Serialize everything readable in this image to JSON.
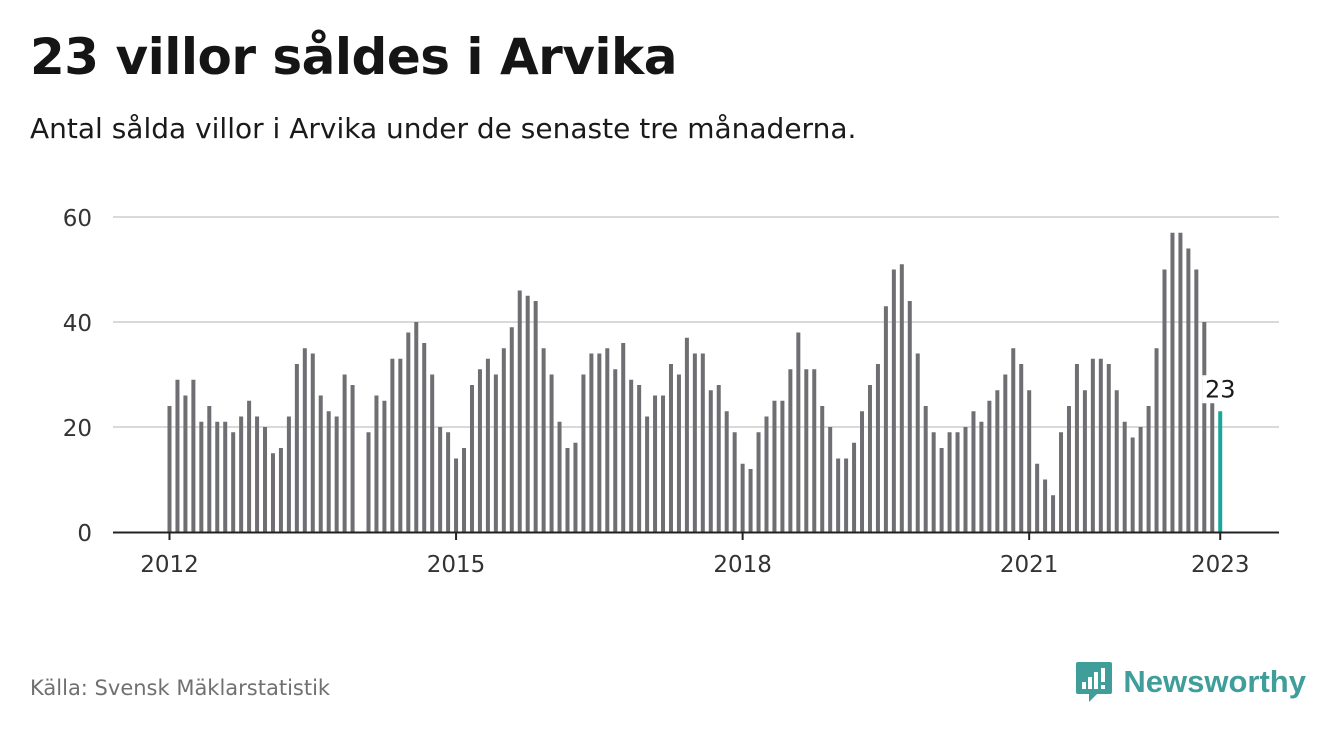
{
  "title": "23 villor såldes i Arvika",
  "subtitle": "Antal sålda villor i Arvika under de senaste tre månaderna.",
  "source": "Källa: Svensk Mäklarstatistik",
  "brand": "Newsworthy",
  "colors": {
    "bar": "#6e6e73",
    "highlight": "#19a79c",
    "grid": "#d9d9d9",
    "axis": "#222222",
    "brand": "#3f9e9a"
  },
  "chart_data": {
    "type": "bar",
    "xlabel": "",
    "ylabel": "",
    "ylim": [
      0,
      60
    ],
    "yticks": [
      0,
      20,
      40,
      60
    ],
    "grid": true,
    "x_tick_labels": [
      "2012",
      "2015",
      "2018",
      "2021",
      "2023"
    ],
    "x_start": "2012-01",
    "x_end": "2023-01",
    "categories": [
      "2012-01",
      "2012-02",
      "2012-03",
      "2012-04",
      "2012-05",
      "2012-06",
      "2012-07",
      "2012-08",
      "2012-09",
      "2012-10",
      "2012-11",
      "2012-12",
      "2013-01",
      "2013-02",
      "2013-03",
      "2013-04",
      "2013-05",
      "2013-06",
      "2013-07",
      "2013-08",
      "2013-09",
      "2013-10",
      "2013-11",
      "2013-12",
      "2014-01",
      "2014-02",
      "2014-03",
      "2014-04",
      "2014-05",
      "2014-06",
      "2014-07",
      "2014-08",
      "2014-09",
      "2014-10",
      "2014-11",
      "2014-12",
      "2015-01",
      "2015-02",
      "2015-03",
      "2015-04",
      "2015-05",
      "2015-06",
      "2015-07",
      "2015-08",
      "2015-09",
      "2015-10",
      "2015-11",
      "2015-12",
      "2016-01",
      "2016-02",
      "2016-03",
      "2016-04",
      "2016-05",
      "2016-06",
      "2016-07",
      "2016-08",
      "2016-09",
      "2016-10",
      "2016-11",
      "2016-12",
      "2017-01",
      "2017-02",
      "2017-03",
      "2017-04",
      "2017-05",
      "2017-06",
      "2017-07",
      "2017-08",
      "2017-09",
      "2017-10",
      "2017-11",
      "2017-12",
      "2018-01",
      "2018-02",
      "2018-03",
      "2018-04",
      "2018-05",
      "2018-06",
      "2018-07",
      "2018-08",
      "2018-09",
      "2018-10",
      "2018-11",
      "2018-12",
      "2019-01",
      "2019-02",
      "2019-03",
      "2019-04",
      "2019-05",
      "2019-06",
      "2019-07",
      "2019-08",
      "2019-09",
      "2019-10",
      "2019-11",
      "2019-12",
      "2020-01",
      "2020-02",
      "2020-03",
      "2020-04",
      "2020-05",
      "2020-06",
      "2020-07",
      "2020-08",
      "2020-09",
      "2020-10",
      "2020-11",
      "2020-12",
      "2021-01",
      "2021-02",
      "2021-03",
      "2021-04",
      "2021-05",
      "2021-06",
      "2021-07",
      "2021-08",
      "2021-09",
      "2021-10",
      "2021-11",
      "2021-12",
      "2022-01",
      "2022-02",
      "2022-03",
      "2022-04",
      "2022-05",
      "2022-06",
      "2022-07",
      "2022-08",
      "2022-09",
      "2022-10",
      "2022-11",
      "2022-12",
      "2023-01"
    ],
    "series": [
      {
        "values": [
          24,
          29,
          26,
          29,
          21,
          24,
          21,
          21,
          19,
          22,
          25,
          22,
          20,
          15,
          16,
          22,
          32,
          35,
          34,
          26,
          23,
          22,
          30,
          28,
          null,
          19,
          26,
          25,
          33,
          33,
          38,
          40,
          36,
          30,
          20,
          19,
          14,
          16,
          28,
          31,
          33,
          30,
          35,
          39,
          46,
          45,
          44,
          35,
          30,
          21,
          16,
          17,
          30,
          34,
          34,
          35,
          31,
          36,
          29,
          28,
          22,
          26,
          26,
          32,
          30,
          37,
          34,
          34,
          27,
          28,
          23,
          19,
          13,
          12,
          19,
          22,
          25,
          25,
          31,
          38,
          31,
          31,
          24,
          20,
          14,
          14,
          17,
          23,
          28,
          32,
          43,
          50,
          51,
          44,
          34,
          24,
          19,
          16,
          19,
          19,
          20,
          23,
          21,
          25,
          27,
          30,
          35,
          32,
          27,
          13,
          10,
          7,
          19,
          24,
          32,
          27,
          33,
          33,
          32,
          27,
          21,
          18,
          20,
          24,
          35,
          50,
          57,
          57,
          54,
          50,
          40,
          25,
          23
        ]
      }
    ],
    "highlight_index": 132,
    "annotations": [
      {
        "category": "2023-01",
        "text": "23"
      }
    ]
  }
}
